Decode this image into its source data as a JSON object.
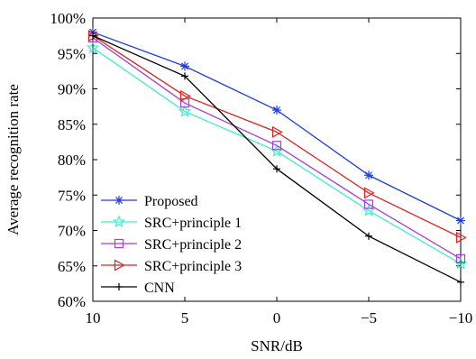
{
  "chart_data": {
    "type": "line",
    "xlabel": "SNR/dB",
    "ylabel": "Average recognition rate",
    "x": [
      10,
      5,
      0,
      -5,
      -10
    ],
    "x_tick_labels": [
      "10",
      "5",
      "0",
      "−5",
      "−10"
    ],
    "xlim": [
      10,
      -10
    ],
    "ylim": [
      60,
      100
    ],
    "y_ticks": [
      60,
      65,
      70,
      75,
      80,
      85,
      90,
      95,
      100
    ],
    "y_tick_labels": [
      "60%",
      "65%",
      "70%",
      "75%",
      "80%",
      "85%",
      "90%",
      "95%",
      "100%"
    ],
    "grid": false,
    "legend_position": "bottom-left",
    "series": [
      {
        "name": "Proposed",
        "color": "#1f3fdd",
        "marker": "asterisk",
        "values": [
          98.0,
          93.2,
          87.0,
          77.8,
          71.4
        ]
      },
      {
        "name": "SRC+principle 1",
        "color": "#3ff0c8",
        "marker": "star",
        "values": [
          95.8,
          86.8,
          81.2,
          72.8,
          65.3
        ]
      },
      {
        "name": "SRC+principle 2",
        "color": "#a33ee0",
        "marker": "square",
        "values": [
          97.2,
          88.0,
          82.0,
          73.7,
          66.0
        ]
      },
      {
        "name": "SRC+principle 3",
        "color": "#e02020",
        "marker": "triangle-right",
        "values": [
          97.5,
          89.0,
          83.9,
          75.3,
          69.0
        ]
      },
      {
        "name": "CNN",
        "color": "#000000",
        "marker": "plus",
        "values": [
          97.5,
          91.8,
          78.7,
          69.2,
          62.7
        ]
      }
    ]
  }
}
